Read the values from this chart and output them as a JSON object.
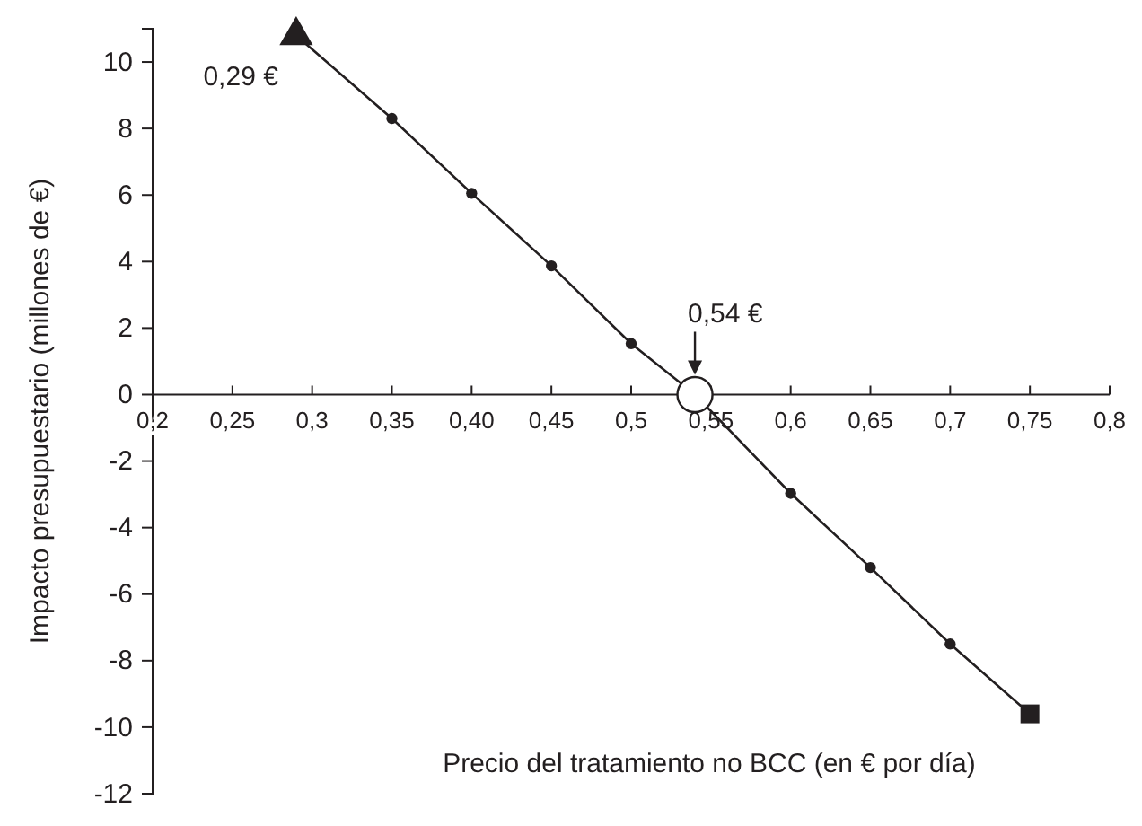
{
  "chart_data": {
    "type": "line",
    "xlabel": "Precio del tratamiento no BCC (en € por día)",
    "ylabel": "Impacto presupuestario (millones de €)",
    "xlim": [
      0.2,
      0.8
    ],
    "ylim": [
      -12,
      11
    ],
    "xticks": [
      {
        "value": 0.2,
        "label": "0,2"
      },
      {
        "value": 0.25,
        "label": "0,25"
      },
      {
        "value": 0.3,
        "label": "0,3"
      },
      {
        "value": 0.35,
        "label": "0,35"
      },
      {
        "value": 0.4,
        "label": "0,40"
      },
      {
        "value": 0.45,
        "label": "0,45"
      },
      {
        "value": 0.5,
        "label": "0,5"
      },
      {
        "value": 0.55,
        "label": "0,55"
      },
      {
        "value": 0.6,
        "label": "0,6"
      },
      {
        "value": 0.65,
        "label": "0,65"
      },
      {
        "value": 0.7,
        "label": "0,7"
      },
      {
        "value": 0.75,
        "label": "0,75"
      },
      {
        "value": 0.8,
        "label": "0,8"
      }
    ],
    "yticks": [
      -12,
      -10,
      -8,
      -6,
      -4,
      -2,
      0,
      2,
      4,
      6,
      8,
      10
    ],
    "grid": false,
    "line_style": "solid",
    "series": [
      {
        "color": "#231f20",
        "marker": "none",
        "x": [
          0.29,
          0.35,
          0.4,
          0.45,
          0.5,
          0.54,
          0.6,
          0.65,
          0.7,
          0.75
        ],
        "values": [
          10.8,
          8.3,
          6.05,
          3.87,
          1.53,
          0,
          -2.97,
          -5.2,
          -7.5,
          -9.6
        ]
      },
      {
        "type": "scatter",
        "color": "#231f20",
        "marker": "circle",
        "x": [
          0.35,
          0.4,
          0.45,
          0.5,
          0.6,
          0.65,
          0.7
        ],
        "values": [
          8.3,
          6.05,
          3.87,
          1.53,
          -2.97,
          -5.2,
          -7.5
        ]
      },
      {
        "type": "scatter",
        "color": "#231f20",
        "marker": "triangle",
        "x": [
          0.29
        ],
        "values": [
          10.8
        ]
      },
      {
        "type": "scatter",
        "color": "#231f20",
        "marker": "square",
        "x": [
          0.75
        ],
        "values": [
          -9.6
        ]
      },
      {
        "type": "scatter",
        "color": "#ffffff",
        "marker": "circle",
        "x": [
          0.54
        ],
        "values": [
          0
        ]
      }
    ],
    "annotations": [
      {
        "text": "0,29 €",
        "x": 0.29,
        "y": 10.8
      },
      {
        "text": "0,54 €",
        "x": 0.54,
        "y": 0
      }
    ]
  }
}
